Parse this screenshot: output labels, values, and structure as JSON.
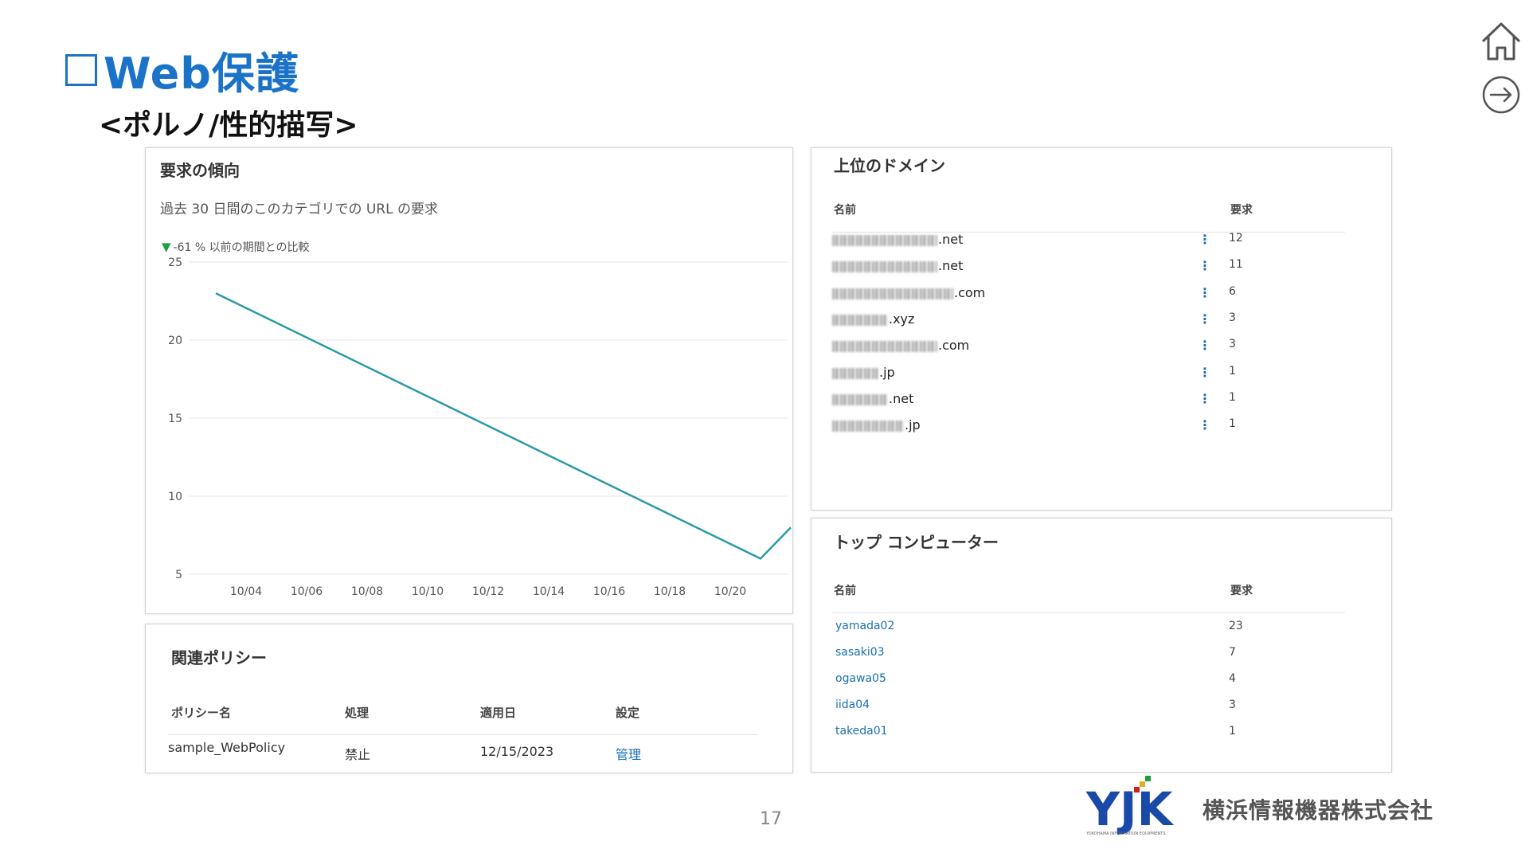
{
  "slide": {
    "title": "Web保護",
    "subtitle": "<ポルノ/性的描写>",
    "page_number": "17",
    "company": "横浜情報機器株式会社",
    "logo_text": "YJK",
    "logo_tagline": "YOKOHAMA INFORMATION EQUIPMENTS",
    "accent_color": "#1a73c8"
  },
  "trend": {
    "title": "要求の傾向",
    "subtitle": "過去 30 日間のこのカテゴリでの URL の要求",
    "comparison_arrow": "▼",
    "comparison": "-61 % 以前の期間との比較"
  },
  "chart_data": {
    "type": "line",
    "x": [
      "10/03",
      "10/21",
      "10/22"
    ],
    "series": [
      {
        "values": [
          23,
          6,
          8
        ],
        "color": "#2a9aa8"
      }
    ],
    "xticks": [
      "10/04",
      "10/06",
      "10/08",
      "10/10",
      "10/12",
      "10/14",
      "10/16",
      "10/18",
      "10/20"
    ],
    "yticks": [
      5,
      10,
      15,
      20,
      25
    ],
    "ylim": [
      5,
      25
    ],
    "grid": true
  },
  "policy": {
    "title": "関連ポリシー",
    "headers": [
      "ポリシー名",
      "処理",
      "適用日",
      "設定"
    ],
    "row": {
      "name": "sample_WebPolicy",
      "action": "禁止",
      "date": "12/15/2023",
      "settings_link": "管理"
    }
  },
  "domains": {
    "title": "上位のドメイン",
    "col_name": "名前",
    "col_requests": "要求",
    "rows": [
      {
        "suffix": ".net",
        "count": "12"
      },
      {
        "suffix": ".net",
        "count": "11"
      },
      {
        "suffix": ".com",
        "count": "6"
      },
      {
        "suffix": ".xyz",
        "count": "3"
      },
      {
        "suffix": ".com",
        "count": "3"
      },
      {
        "suffix": ".jp",
        "count": "1"
      },
      {
        "suffix": ".net",
        "count": "1"
      },
      {
        "suffix": ".jp",
        "count": "1"
      }
    ]
  },
  "computers": {
    "title": "トップ コンピューター",
    "col_name": "名前",
    "col_requests": "要求",
    "rows": [
      {
        "name": "yamada02",
        "count": "23"
      },
      {
        "name": "sasaki03",
        "count": "7"
      },
      {
        "name": "ogawa05",
        "count": "4"
      },
      {
        "name": "iida04",
        "count": "3"
      },
      {
        "name": "takeda01",
        "count": "1"
      }
    ]
  },
  "icons": {
    "home": "home-icon",
    "next": "arrow-right-circle-icon",
    "menu": "more-vertical-icon"
  }
}
